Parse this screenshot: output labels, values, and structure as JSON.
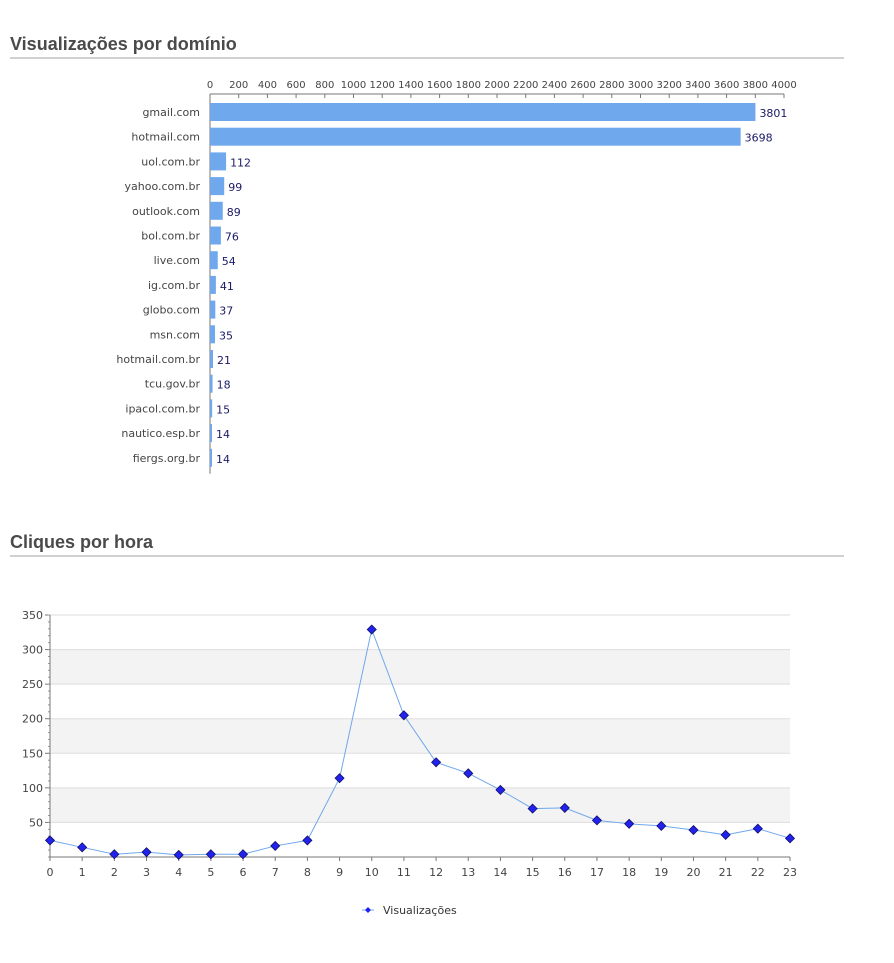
{
  "sections": {
    "domains_title": "Visualizações por domínio",
    "hours_title": "Cliques por hora"
  },
  "chart_data": [
    {
      "type": "bar",
      "orientation": "horizontal",
      "title": "Visualizações por domínio",
      "categories": [
        "gmail.com",
        "hotmail.com",
        "uol.com.br",
        "yahoo.com.br",
        "outlook.com",
        "bol.com.br",
        "live.com",
        "ig.com.br",
        "globo.com",
        "msn.com",
        "hotmail.com.br",
        "tcu.gov.br",
        "ipacol.com.br",
        "nautico.esp.br",
        "fiergs.org.br"
      ],
      "values": [
        3801,
        3698,
        112,
        99,
        89,
        76,
        54,
        41,
        37,
        35,
        21,
        18,
        15,
        14,
        14
      ],
      "xlim": [
        0,
        4000
      ],
      "xticks": [
        0,
        200,
        400,
        600,
        800,
        1000,
        1200,
        1400,
        1600,
        1800,
        2000,
        2200,
        2400,
        2600,
        2800,
        3000,
        3200,
        3400,
        3600,
        3800,
        4000
      ],
      "axis_position": "top",
      "data_labels": true,
      "color": "#6fa8ec",
      "label_color": "#1a1a66"
    },
    {
      "type": "line",
      "title": "Cliques por hora",
      "x": [
        0,
        1,
        2,
        3,
        4,
        5,
        6,
        7,
        8,
        9,
        10,
        11,
        12,
        13,
        14,
        15,
        16,
        17,
        18,
        19,
        20,
        21,
        22,
        23
      ],
      "series": [
        {
          "name": "Visualizações",
          "values": [
            24,
            14,
            4,
            7,
            3,
            4,
            4,
            16,
            24,
            114,
            329,
            205,
            137,
            121,
            97,
            70,
            71,
            53,
            48,
            45,
            39,
            32,
            41,
            27
          ],
          "color": "#6fa8ec",
          "marker": "diamond",
          "marker_color": "#2222ee"
        }
      ],
      "ylim": [
        0,
        350
      ],
      "yticks": [
        50,
        100,
        150,
        200,
        250,
        300,
        350
      ],
      "grid_bands": true,
      "legend_position": "bottom"
    }
  ]
}
